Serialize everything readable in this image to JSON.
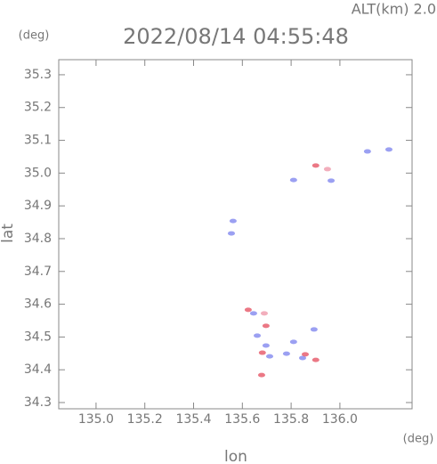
{
  "chart_data": {
    "type": "scatter",
    "title": "2022/08/14 04:55:48",
    "subtitle": "ALT(km) 2.0",
    "x_unit": "(deg)",
    "y_unit": "(deg)",
    "xlabel": "lon",
    "ylabel": "lat",
    "xlim": [
      134.847,
      136.296
    ],
    "ylim": [
      34.281,
      35.346
    ],
    "xticks": [
      {
        "value": 135,
        "label": "135.0"
      },
      135.2,
      135.4,
      135.6,
      135.8,
      {
        "value": 136,
        "label": "136.0"
      }
    ],
    "yticks": [
      34.3,
      34.4,
      34.5,
      34.6,
      34.7,
      34.8,
      34.9,
      {
        "value": 35,
        "label": "35.0"
      },
      35.1,
      35.2,
      35.3
    ],
    "series": [
      {
        "color": "#8a8ff0",
        "x": [
          136.113,
          136.201,
          135.81,
          135.964,
          135.562,
          135.555,
          135.646,
          135.661,
          135.697,
          135.712,
          135.781,
          135.81,
          135.847,
          135.894
        ],
        "values": [
          35.066,
          35.072,
          34.979,
          34.977,
          34.854,
          34.816,
          34.572,
          34.504,
          34.474,
          34.441,
          34.449,
          34.485,
          34.436,
          34.523
        ]
      },
      {
        "color": "#e86070",
        "x": [
          135.901,
          135.624,
          135.697,
          135.682,
          135.858,
          135.679,
          135.901
        ],
        "values": [
          35.023,
          34.583,
          34.534,
          34.452,
          34.447,
          34.384,
          34.43
        ]
      },
      {
        "color": "#f0a0b0",
        "x": [
          135.949,
          135.69
        ],
        "values": [
          35.012,
          34.572
        ]
      }
    ]
  }
}
